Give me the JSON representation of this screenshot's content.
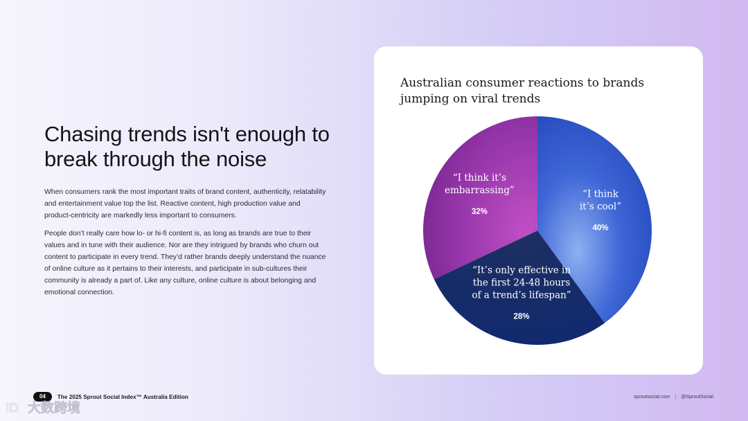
{
  "page": {
    "headline": "Chasing trends isn't enough to break through the noise",
    "paragraphs": [
      "When consumers rank the most important traits of brand content, authenticity, relatability and entertainment value top the list. Reactive content, high production value and product-centricity are markedly less important to consumers.",
      "People don’t really care how lo- or hi-fi content is, as long as brands are true to their values and in tune with their audience. Nor are they intrigued by brands who churn out content to participate in every trend. They’d rather brands deeply understand the nuance of online culture as it pertains to their interests, and participate in sub-cultures their community is already a part of. Like any culture, online culture is about belonging and emotional connection."
    ]
  },
  "chart_data": {
    "type": "pie",
    "title": "Australian consumer reactions to brands jumping on viral trends",
    "slices": [
      {
        "label_lines": [
          "“I think",
          "it’s cool”"
        ],
        "value": 40,
        "value_label": "40%",
        "color": "#2f55c9"
      },
      {
        "label_lines": [
          "“It’s only effective in",
          "the first 24-48 hours",
          "of a trend’s lifespan”"
        ],
        "value": 28,
        "value_label": "28%",
        "color": "#15306e"
      },
      {
        "label_lines": [
          "“I think it’s",
          "embarrassing”"
        ],
        "value": 32,
        "value_label": "32%",
        "color": "#8f33a3"
      }
    ],
    "start_angle_deg": 0,
    "direction": "clockwise",
    "legend": "none (labels inside slices)"
  },
  "footer": {
    "page_number": "04",
    "doc_title": "The 2025 Sprout Social Index™ Australia Edition",
    "site": "sproutsocial.com",
    "separator": "|",
    "handle": "@SproutSocial"
  },
  "watermark": {
    "text": "大数跨境"
  },
  "colors": {
    "accent_blue": "#2f55c9",
    "dark_navy": "#15306e",
    "purple": "#8f33a3",
    "card_bg": "#ffffff"
  }
}
